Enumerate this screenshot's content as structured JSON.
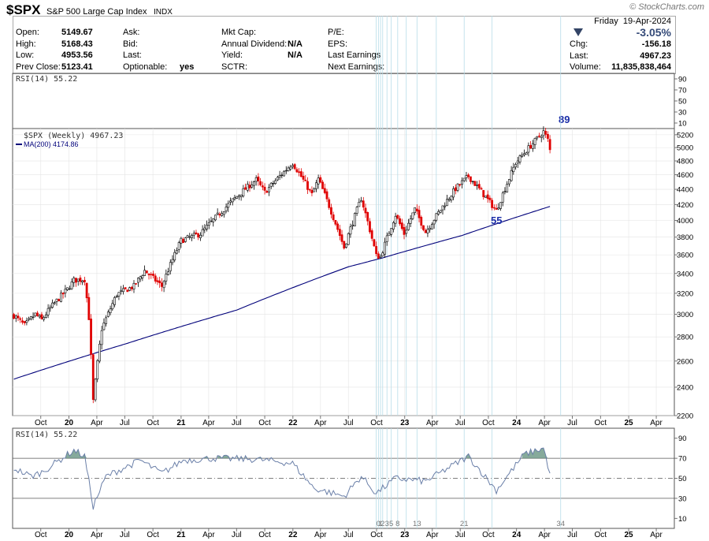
{
  "header": {
    "symbol": "$SPX",
    "name": "S&P 500 Large Cap Index",
    "exchange": "INDX",
    "brand": "© StockCharts.com",
    "date": "Friday  19-Apr-2024",
    "change_pct": "-3.05%",
    "stats": [
      {
        "label": "Open:",
        "value": "5149.67"
      },
      {
        "label": "High:",
        "value": "5168.43"
      },
      {
        "label": "Low:",
        "value": "4953.56"
      },
      {
        "label": "Prev Close:",
        "value": "5123.41"
      }
    ],
    "stats2": [
      {
        "label": "Ask:",
        "value": ""
      },
      {
        "label": "Bid:",
        "value": ""
      },
      {
        "label": "Last:",
        "value": ""
      },
      {
        "label": "Optionable:",
        "value": "yes"
      }
    ],
    "stats3": [
      {
        "label": "Mkt Cap:",
        "value": ""
      },
      {
        "label": "Annual Dividend:",
        "value": "N/A"
      },
      {
        "label": "Yield:",
        "value": "N/A"
      },
      {
        "label": "SCTR:",
        "value": ""
      }
    ],
    "stats4": [
      {
        "label": "P/E:",
        "value": ""
      },
      {
        "label": "EPS:",
        "value": ""
      },
      {
        "label": "Last Earnings",
        "value": ""
      },
      {
        "label": "Next Earnings:",
        "value": ""
      }
    ],
    "stats5": [
      {
        "label": "Chg:",
        "value": "-156.18"
      },
      {
        "label": "Last:",
        "value": "4967.23"
      },
      {
        "label": "Volume:",
        "value": "11,835,838,464"
      }
    ]
  },
  "chart_data": [
    {
      "type": "line",
      "panel": "rsi-top",
      "legend": "RSI(14) 55.22",
      "ylim": [
        0,
        100
      ],
      "yticks": [
        10,
        30,
        50,
        70,
        90
      ],
      "annotation": "89"
    },
    {
      "type": "candlestick",
      "panel": "price",
      "legend_price": "$SPX (Weekly) 4967.23",
      "legend_ma": "MA(200) 4174.86",
      "ylim": [
        2200,
        5300
      ],
      "yticks": [
        2200,
        2400,
        2600,
        2800,
        3000,
        3200,
        3400,
        3600,
        3800,
        4000,
        4200,
        4400,
        4600,
        4800,
        5000,
        5200
      ],
      "x_range": [
        "2019-07-01",
        "2025-05-30"
      ],
      "x_ticks": [
        {
          "date": "2019-10-01",
          "label": "Oct"
        },
        {
          "date": "2020-01-01",
          "label": "20",
          "bold": true
        },
        {
          "date": "2020-04-01",
          "label": "Apr"
        },
        {
          "date": "2020-07-01",
          "label": "Jul"
        },
        {
          "date": "2020-10-01",
          "label": "Oct"
        },
        {
          "date": "2021-01-01",
          "label": "21",
          "bold": true
        },
        {
          "date": "2021-04-01",
          "label": "Apr"
        },
        {
          "date": "2021-07-01",
          "label": "Jul"
        },
        {
          "date": "2021-10-01",
          "label": "Oct"
        },
        {
          "date": "2022-01-01",
          "label": "22",
          "bold": true
        },
        {
          "date": "2022-04-01",
          "label": "Apr"
        },
        {
          "date": "2022-07-01",
          "label": "Jul"
        },
        {
          "date": "2022-10-01",
          "label": "Oct"
        },
        {
          "date": "2023-01-01",
          "label": "23",
          "bold": true
        },
        {
          "date": "2023-04-01",
          "label": "Apr"
        },
        {
          "date": "2023-07-01",
          "label": "Jul"
        },
        {
          "date": "2023-10-01",
          "label": "Oct"
        },
        {
          "date": "2024-01-01",
          "label": "24",
          "bold": true
        },
        {
          "date": "2024-04-01",
          "label": "Apr"
        },
        {
          "date": "2024-07-01",
          "label": "Jul"
        },
        {
          "date": "2024-10-01",
          "label": "Oct"
        },
        {
          "date": "2025-01-01",
          "label": "25",
          "bold": true
        },
        {
          "date": "2025-04-01",
          "label": "Apr"
        }
      ],
      "close_keyframes": [
        {
          "date": "2019-07-05",
          "close": 2990
        },
        {
          "date": "2019-08-09",
          "close": 2900
        },
        {
          "date": "2019-09-13",
          "close": 3000
        },
        {
          "date": "2019-10-04",
          "close": 2950
        },
        {
          "date": "2019-11-01",
          "close": 3060
        },
        {
          "date": "2019-12-27",
          "close": 3240
        },
        {
          "date": "2020-01-17",
          "close": 3330
        },
        {
          "date": "2020-02-21",
          "close": 3340
        },
        {
          "date": "2020-03-06",
          "close": 2970
        },
        {
          "date": "2020-03-20",
          "close": 2300
        },
        {
          "date": "2020-04-17",
          "close": 2870
        },
        {
          "date": "2020-06-05",
          "close": 3190
        },
        {
          "date": "2020-07-31",
          "close": 3270
        },
        {
          "date": "2020-09-04",
          "close": 3430
        },
        {
          "date": "2020-10-30",
          "close": 3270
        },
        {
          "date": "2020-12-31",
          "close": 3760
        },
        {
          "date": "2021-03-05",
          "close": 3840
        },
        {
          "date": "2021-06-25",
          "close": 4280
        },
        {
          "date": "2021-09-03",
          "close": 4530
        },
        {
          "date": "2021-10-01",
          "close": 4360
        },
        {
          "date": "2021-12-31",
          "close": 4770
        },
        {
          "date": "2022-03-04",
          "close": 4330
        },
        {
          "date": "2022-03-25",
          "close": 4540
        },
        {
          "date": "2022-06-17",
          "close": 3680
        },
        {
          "date": "2022-08-12",
          "close": 4280
        },
        {
          "date": "2022-09-30",
          "close": 3590
        },
        {
          "date": "2022-10-14",
          "close": 3580
        },
        {
          "date": "2022-12-02",
          "close": 4070
        },
        {
          "date": "2022-12-30",
          "close": 3840
        },
        {
          "date": "2023-02-03",
          "close": 4140
        },
        {
          "date": "2023-03-10",
          "close": 3860
        },
        {
          "date": "2023-06-16",
          "close": 4410
        },
        {
          "date": "2023-07-28",
          "close": 4580
        },
        {
          "date": "2023-10-27",
          "close": 4120
        },
        {
          "date": "2023-12-29",
          "close": 4770
        },
        {
          "date": "2024-03-29",
          "close": 5250
        },
        {
          "date": "2024-04-12",
          "close": 5120
        },
        {
          "date": "2024-04-19",
          "close": 4967
        }
      ],
      "ma_keyframes": [
        {
          "date": "2019-07-05",
          "value": 2460
        },
        {
          "date": "2020-07-03",
          "value": 2740
        },
        {
          "date": "2021-07-02",
          "value": 3040
        },
        {
          "date": "2022-07-01",
          "value": 3470
        },
        {
          "date": "2022-10-14",
          "value": 3560
        },
        {
          "date": "2023-07-07",
          "value": 3820
        },
        {
          "date": "2024-04-19",
          "value": 4175
        }
      ],
      "annotation": "55",
      "vlines": [
        "2022-09-30",
        "2022-10-07",
        "2022-10-14",
        "2022-10-21",
        "2022-11-04",
        "2022-11-18",
        "2022-12-09",
        "2023-01-06",
        "2023-02-10",
        "2023-04-14",
        "2023-07-14",
        "2023-10-13",
        "2024-05-24"
      ]
    },
    {
      "type": "line",
      "panel": "rsi",
      "legend": "RSI(14) 55.22",
      "ylim": [
        0,
        100
      ],
      "yticks": [
        10,
        30,
        50,
        70,
        90
      ],
      "overbought": 70,
      "oversold": 30,
      "keyframes": [
        {
          "date": "2019-07-05",
          "value": 60
        },
        {
          "date": "2019-08-30",
          "value": 52
        },
        {
          "date": "2019-10-04",
          "value": 56
        },
        {
          "date": "2020-01-17",
          "value": 78
        },
        {
          "date": "2020-02-21",
          "value": 72
        },
        {
          "date": "2020-03-20",
          "value": 22
        },
        {
          "date": "2020-05-01",
          "value": 52
        },
        {
          "date": "2020-08-21",
          "value": 68
        },
        {
          "date": "2020-10-30",
          "value": 55
        },
        {
          "date": "2021-01-08",
          "value": 68
        },
        {
          "date": "2021-04-16",
          "value": 70
        },
        {
          "date": "2021-09-03",
          "value": 69
        },
        {
          "date": "2021-12-31",
          "value": 65
        },
        {
          "date": "2022-03-11",
          "value": 40
        },
        {
          "date": "2022-06-17",
          "value": 32
        },
        {
          "date": "2022-08-12",
          "value": 52
        },
        {
          "date": "2022-09-30",
          "value": 35
        },
        {
          "date": "2022-12-02",
          "value": 50
        },
        {
          "date": "2023-03-10",
          "value": 47
        },
        {
          "date": "2023-07-28",
          "value": 72
        },
        {
          "date": "2023-10-27",
          "value": 38
        },
        {
          "date": "2024-01-26",
          "value": 74
        },
        {
          "date": "2024-03-29",
          "value": 80
        },
        {
          "date": "2024-04-19",
          "value": 55
        }
      ],
      "x_ticks": [
        {
          "date": "2019-10-01",
          "label": "Oct"
        },
        {
          "date": "2020-01-01",
          "label": "20",
          "bold": true
        },
        {
          "date": "2020-04-01",
          "label": "Apr"
        },
        {
          "date": "2020-07-01",
          "label": "Jul"
        },
        {
          "date": "2020-10-01",
          "label": "Oct"
        },
        {
          "date": "2021-01-01",
          "label": "21",
          "bold": true
        },
        {
          "date": "2021-04-01",
          "label": "Apr"
        },
        {
          "date": "2021-07-01",
          "label": "Jul"
        },
        {
          "date": "2021-10-01",
          "label": "Oct"
        },
        {
          "date": "2022-01-01",
          "label": "22",
          "bold": true
        },
        {
          "date": "2022-04-01",
          "label": "Apr"
        },
        {
          "date": "2022-07-01",
          "label": "Jul"
        },
        {
          "date": "2022-10-01",
          "label": "Oct"
        },
        {
          "date": "2023-01-01",
          "label": "23",
          "bold": true
        },
        {
          "date": "2023-04-01",
          "label": "Apr"
        },
        {
          "date": "2023-07-01",
          "label": "Jul"
        },
        {
          "date": "2023-10-01",
          "label": "Oct"
        },
        {
          "date": "2024-01-01",
          "label": "24",
          "bold": true
        },
        {
          "date": "2024-04-01",
          "label": "Apr"
        },
        {
          "date": "2024-07-01",
          "label": "Jul"
        },
        {
          "date": "2024-10-01",
          "label": "Oct"
        },
        {
          "date": "2025-01-01",
          "label": "25",
          "bold": true
        },
        {
          "date": "2025-04-01",
          "label": "Apr"
        }
      ],
      "cycle_labels": [
        {
          "date": "2022-10-07",
          "label": "0"
        },
        {
          "date": "2022-10-14",
          "label": "1"
        },
        {
          "date": "2022-10-21",
          "label": "2"
        },
        {
          "date": "2022-11-04",
          "label": "3"
        },
        {
          "date": "2022-11-18",
          "label": "5"
        },
        {
          "date": "2022-12-09",
          "label": "8"
        },
        {
          "date": "2023-02-10",
          "label": "13"
        },
        {
          "date": "2023-07-14",
          "label": "21"
        },
        {
          "date": "2024-05-24",
          "label": "34"
        }
      ]
    }
  ],
  "colors": {
    "up": "#000000",
    "down": "#e00000",
    "ma": "#00007a",
    "rsi_line": "#6a7fa8",
    "rsi_fill": "#5e8e7a",
    "annotation": "#1a2ea8",
    "grid": "#e4e4e4",
    "vline": "#b8dce8",
    "panel_border": "#555555"
  }
}
